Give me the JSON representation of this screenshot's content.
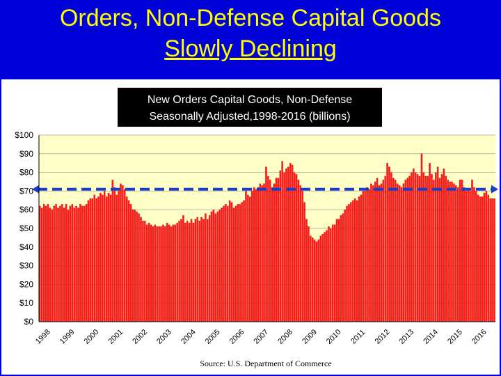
{
  "slide": {
    "title_line1": "Orders, Non-Defense Capital Goods",
    "title_line2": "Slowly Declining"
  },
  "colors": {
    "background": "#0000d8",
    "title_text": "#ffff00",
    "plot_background": "#ffffc8",
    "bar": "#ff1a1a",
    "bar_outline": "#c80000",
    "reference_line": "#1a3cc8",
    "chart_title_box": "#000000",
    "chart_title_text": "#ffffff"
  },
  "chart_data": {
    "type": "bar",
    "title_line1": "New Orders Capital Goods, Non-Defense",
    "title_line2": "Seasonally Adjusted,1998-2016 (billions)",
    "source": "Source: U.S. Department of Commerce",
    "y_ticks": [
      "$0",
      "$10",
      "$20",
      "$30",
      "$40",
      "$50",
      "$60",
      "$70",
      "$80",
      "$90",
      "$100"
    ],
    "ylim": [
      0,
      100
    ],
    "x_ticks": [
      "1998",
      "1999",
      "2000",
      "2001",
      "2002",
      "2003",
      "2004",
      "2005",
      "2006",
      "2007",
      "2008",
      "2009",
      "2010",
      "2011",
      "2012",
      "2013",
      "2014",
      "2015",
      "2016"
    ],
    "frequency": "monthly",
    "reference_line": {
      "value": 71,
      "style": "dashed",
      "arrowheads": "both"
    },
    "grid": "horizontal",
    "values_by_year": {
      "1998": [
        62,
        61,
        63,
        62,
        63,
        61,
        60,
        62,
        63,
        61,
        62,
        63
      ],
      "1999": [
        61,
        63,
        60,
        62,
        63,
        61,
        62,
        61,
        63,
        62,
        62,
        63
      ],
      "2000": [
        65,
        66,
        66,
        68,
        66,
        67,
        69,
        68,
        70,
        67,
        69,
        68
      ],
      "2001": [
        76,
        72,
        68,
        70,
        74,
        73,
        71,
        67,
        65,
        63,
        60,
        60
      ],
      "2002": [
        59,
        58,
        56,
        54,
        54,
        52,
        53,
        52,
        51,
        52,
        51,
        51
      ],
      "2003": [
        51,
        52,
        51,
        53,
        52,
        51,
        52,
        52,
        53,
        54,
        55,
        57
      ],
      "2004": [
        53,
        54,
        53,
        55,
        53,
        55,
        56,
        54,
        56,
        55,
        58,
        55
      ],
      "2005": [
        57,
        59,
        60,
        58,
        59,
        60,
        61,
        62,
        63,
        62,
        65,
        64
      ],
      "2006": [
        61,
        62,
        63,
        63,
        64,
        65,
        70,
        68,
        67,
        70,
        72,
        71
      ],
      "2007": [
        72,
        74,
        73,
        74,
        83,
        78,
        76,
        72,
        74,
        77,
        77,
        81
      ],
      "2008": [
        86,
        80,
        82,
        83,
        85,
        84,
        80,
        79,
        76,
        73,
        70,
        64
      ],
      "2009": [
        55,
        51,
        46,
        45,
        44,
        43,
        44,
        46,
        47,
        48,
        49,
        51
      ],
      "2010": [
        50,
        52,
        52,
        55,
        55,
        57,
        58,
        60,
        62,
        63,
        64,
        65
      ],
      "2011": [
        66,
        65,
        67,
        68,
        70,
        70,
        72,
        71,
        74,
        73,
        75,
        77
      ],
      "2012": [
        73,
        74,
        76,
        78,
        85,
        83,
        80,
        77,
        76,
        74,
        73,
        72
      ],
      "2013": [
        74,
        76,
        77,
        78,
        80,
        82,
        80,
        79,
        78,
        90,
        80,
        78
      ],
      "2014": [
        78,
        85,
        79,
        76,
        80,
        83,
        77,
        79,
        82,
        78,
        76,
        75
      ],
      "2015": [
        75,
        74,
        73,
        72,
        76,
        76,
        72,
        70,
        71,
        70,
        76,
        72
      ],
      "2016": [
        70,
        68,
        67,
        67,
        69,
        70,
        68,
        66,
        66,
        66
      ]
    }
  }
}
